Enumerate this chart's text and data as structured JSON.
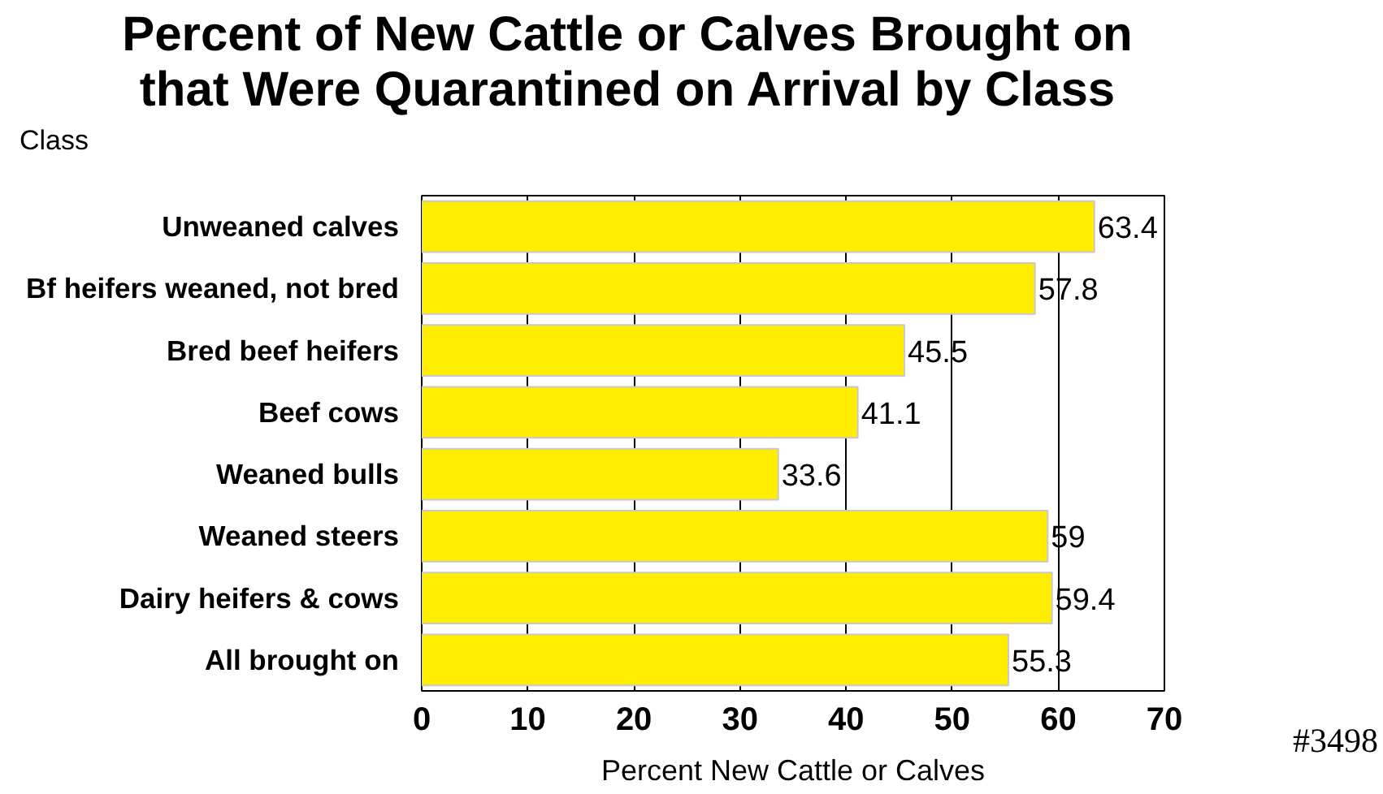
{
  "chart_data": {
    "type": "bar",
    "orientation": "horizontal",
    "title": "Percent of New Cattle or Calves Brought on\nthat Were Quarantined on Arrival by Class",
    "ylabel": "Class",
    "xlabel": "Percent New Cattle or Calves",
    "categories": [
      "Unweaned calves",
      "Bf heifers weaned, not bred",
      "Bred beef heifers",
      "Beef cows",
      "Weaned bulls",
      "Weaned steers",
      "Dairy heifers & cows",
      "All brought on"
    ],
    "values": [
      63.4,
      57.8,
      45.5,
      41.1,
      33.6,
      59,
      59.4,
      55.3
    ],
    "color": "#ffee00",
    "xlim": [
      0,
      70
    ],
    "xticks": [
      0,
      10,
      20,
      30,
      40,
      50,
      60,
      70
    ],
    "grid": "x",
    "data_labels": true,
    "annotations": [
      "#3498"
    ]
  }
}
